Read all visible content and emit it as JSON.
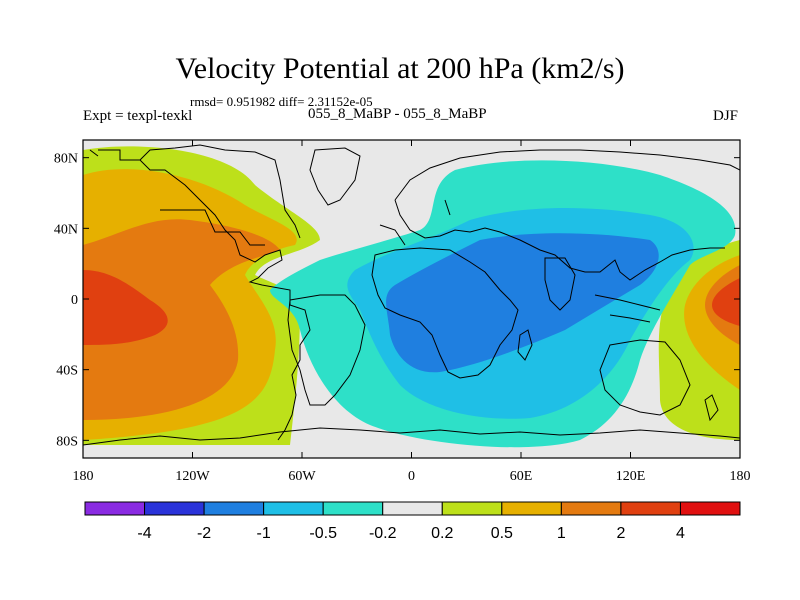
{
  "title": "Velocity Potential at 200 hPa (km2/s)",
  "stats": "rmsd= 0.951982  diff= 2.31152e-05",
  "experiment": "Expt = texpl-texkl",
  "cases": "055_8_MaBP - 055_8_MaBP",
  "season": "DJF",
  "lon_labels": [
    "180",
    "120W",
    "60W",
    "0",
    "60E",
    "120E",
    "180"
  ],
  "lat_labels": [
    "80N",
    "40N",
    "0",
    "40S",
    "80S"
  ],
  "colorbar": {
    "labels": [
      "-4",
      "-2",
      "-1",
      "-0.5",
      "-0.2",
      "0.2",
      "0.5",
      "1",
      "2",
      "4"
    ],
    "colors": [
      "#8a2be2",
      "#2a33d9",
      "#1f7fe0",
      "#1fbfe6",
      "#2ee0c8",
      "#e8e8e8",
      "#bde01a",
      "#e6b000",
      "#e47a10",
      "#e04010",
      "#e01010"
    ]
  },
  "palette": {
    "neutral": "#e8e8e8",
    "pos_02": "#bde01a",
    "pos_05": "#e6b000",
    "pos_1": "#e47a10",
    "pos_2": "#e04010",
    "neg_02": "#2ee0c8",
    "neg_05": "#1fbfe6",
    "neg_1": "#1f7fe0"
  }
}
